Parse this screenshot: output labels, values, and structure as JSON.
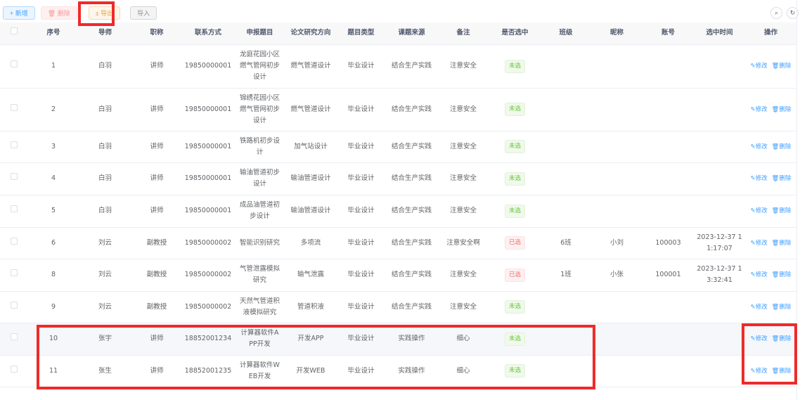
{
  "toolbar": {
    "add": "+ 新增",
    "delete": "🗑 删除",
    "export": "± 导出",
    "import": "导入"
  },
  "tools": {
    "search": "⌕",
    "refresh": "↻"
  },
  "columns": [
    "序号",
    "导师",
    "职称",
    "联系方式",
    "申报题目",
    "论文研究方向",
    "题目类型",
    "课题来源",
    "备注",
    "是否选中",
    "班级",
    "昵称",
    "账号",
    "选中时间",
    "操作"
  ],
  "ops": {
    "edit": "✎修改",
    "delete": "🗑删除"
  },
  "rows": [
    [
      "1",
      "白羽",
      "讲师",
      "19850000001",
      "龙庭花园小区燃气管网初步设计",
      "燃气管道设计",
      "毕业设计",
      "结合生产实践",
      "注意安全",
      "未选",
      "",
      "",
      "",
      ""
    ],
    [
      "2",
      "白羽",
      "讲师",
      "19850000001",
      "锦绣花园小区燃气管网初步设计",
      "燃气管道设计",
      "毕业设计",
      "结合生产实践",
      "注意安全",
      "未选",
      "",
      "",
      "",
      ""
    ],
    [
      "3",
      "白羽",
      "讲师",
      "19850000001",
      "铁路机初步设计",
      "加气站设计",
      "毕业设计",
      "结合生产实践",
      "注意安全",
      "未选",
      "",
      "",
      "",
      ""
    ],
    [
      "4",
      "白羽",
      "讲师",
      "19850000001",
      "输油管道初步设计",
      "输油管道设计",
      "毕业设计",
      "结合生产实践",
      "注意安全",
      "未选",
      "",
      "",
      "",
      ""
    ],
    [
      "5",
      "白羽",
      "讲师",
      "19850000001",
      "成品油管道初步设计",
      "输油管道设计",
      "毕业设计",
      "结合生产实践",
      "注意安全",
      "未选",
      "",
      "",
      "",
      ""
    ],
    [
      "6",
      "刘云",
      "副教授",
      "19850000002",
      "智能识别研究",
      "多项流",
      "毕业设计",
      "结合生产实践",
      "注意安全啊",
      "已选",
      "6班",
      "小刘",
      "100003",
      "2023-12-37 11:17:07"
    ],
    [
      "8",
      "刘云",
      "副教授",
      "19850000002",
      "气管泄露模拟研究",
      "输气泄露",
      "毕业设计",
      "结合生产实践",
      "注意安全",
      "已选",
      "1班",
      "小张",
      "100001",
      "2023-12-37 13:32:41"
    ],
    [
      "9",
      "刘云",
      "副教授",
      "19850000002",
      "天然气管道积液模拟研究",
      "管道积液",
      "毕业设计",
      "结合生产实践",
      "注意安全",
      "未选",
      "",
      "",
      "",
      ""
    ],
    [
      "10",
      "张宇",
      "讲师",
      "18852001234",
      "计算器软件APP开发",
      "开发APP",
      "毕业设计",
      "实践操作",
      "细心",
      "未选",
      "",
      "",
      "",
      ""
    ],
    [
      "11",
      "张生",
      "讲师",
      "18852001235",
      "计算器软件WEB开发",
      "开发WEB",
      "毕业设计",
      "实践操作",
      "细心",
      "未选",
      "",
      "",
      "",
      ""
    ]
  ]
}
